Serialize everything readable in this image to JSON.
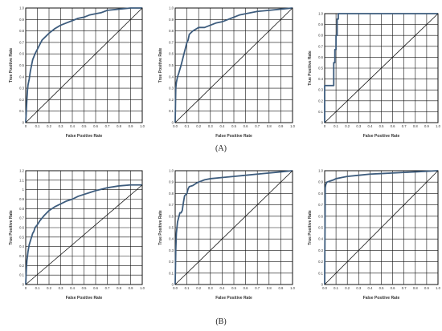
{
  "panel_labels": [
    "(A)",
    "(B)"
  ],
  "colors": {
    "curve": "#3d5c7d",
    "grid": "#111111",
    "frame": "#111111",
    "text": "#333333"
  },
  "chart_data": [
    {
      "type": "line",
      "xlabel": "False Positive Rate",
      "ylabel": "True Positive Rate",
      "xlim": [
        0,
        1
      ],
      "ylim": [
        0,
        1
      ],
      "grid": true,
      "xticks": [
        "0",
        "0.1",
        "0.2",
        "0.3",
        "0.4",
        "0.5",
        "0.6",
        "0.7",
        "0.8",
        "0.9",
        "1.0"
      ],
      "yticks": [
        "0",
        "0.1",
        "0.2",
        "0.3",
        "0.4",
        "0.5",
        "0.6",
        "0.7",
        "0.8",
        "0.9",
        "1.0"
      ],
      "series": [
        {
          "x": [
            0,
            0.005,
            0.01,
            0.015,
            0.02,
            0.03,
            0.04,
            0.05,
            0.06,
            0.08,
            0.1,
            0.12,
            0.14,
            0.16,
            0.2,
            0.25,
            0.3,
            0.35,
            0.4,
            0.45,
            0.5,
            0.55,
            0.6,
            0.65,
            0.7,
            0.8,
            0.9,
            1.0
          ],
          "y": [
            0,
            0.1,
            0.2,
            0.28,
            0.33,
            0.38,
            0.45,
            0.5,
            0.55,
            0.6,
            0.64,
            0.68,
            0.72,
            0.74,
            0.78,
            0.82,
            0.85,
            0.87,
            0.89,
            0.91,
            0.92,
            0.94,
            0.95,
            0.96,
            0.98,
            0.99,
            1.0,
            1.0
          ]
        },
        {
          "x": [
            0,
            1
          ],
          "y": [
            0,
            1
          ]
        }
      ]
    },
    {
      "type": "line",
      "xlabel": "False Positive Rate",
      "ylabel": "True Positive Rate",
      "xlim": [
        0,
        1
      ],
      "ylim": [
        0,
        1
      ],
      "grid": true,
      "xticks": [
        "0.0",
        "0.1",
        "0.2",
        "0.3",
        "0.4",
        "0.5",
        "0.6",
        "0.7",
        "0.8",
        "0.9",
        "1.0"
      ],
      "yticks": [
        "0",
        "0.1",
        "0.2",
        "0.3",
        "0.4",
        "0.5",
        "0.6",
        "0.7",
        "0.8",
        "0.9",
        "1.0"
      ],
      "series": [
        {
          "x": [
            0,
            0.005,
            0.01,
            0.02,
            0.03,
            0.05,
            0.07,
            0.08,
            0.1,
            0.11,
            0.12,
            0.15,
            0.2,
            0.25,
            0.3,
            0.35,
            0.4,
            0.45,
            0.5,
            0.55,
            0.6,
            0.7,
            0.8,
            0.9,
            1.0
          ],
          "y": [
            0,
            0.3,
            0.35,
            0.4,
            0.43,
            0.5,
            0.58,
            0.62,
            0.7,
            0.72,
            0.77,
            0.8,
            0.83,
            0.83,
            0.85,
            0.87,
            0.88,
            0.9,
            0.92,
            0.94,
            0.95,
            0.97,
            0.98,
            0.99,
            1.0
          ]
        },
        {
          "x": [
            0,
            1
          ],
          "y": [
            0,
            1
          ]
        }
      ]
    },
    {
      "type": "line",
      "xlabel": "False Positive Rate",
      "ylabel": "True Positive Rate",
      "xlim": [
        0,
        1
      ],
      "ylim": [
        0,
        1
      ],
      "grid": true,
      "xticks": [
        "0",
        "0.1",
        "0.2",
        "0.3",
        "0.4",
        "0.5",
        "0.6",
        "0.7",
        "0.8",
        "0.9",
        "1.0"
      ],
      "yticks": [
        "0",
        "0.1",
        "0.2",
        "0.3",
        "0.4",
        "0.5",
        "0.6",
        "0.7",
        "0.8",
        "0.9",
        "1.0"
      ],
      "series": [
        {
          "x": [
            0,
            0,
            0.08,
            0.08,
            0.09,
            0.09,
            0.1,
            0.1,
            0.11,
            0.11,
            0.12,
            0.12,
            1.0
          ],
          "y": [
            0,
            0.34,
            0.34,
            0.55,
            0.55,
            0.67,
            0.67,
            0.8,
            0.8,
            0.95,
            0.95,
            1.0,
            1.0
          ]
        },
        {
          "x": [
            0,
            1
          ],
          "y": [
            0,
            1
          ]
        }
      ]
    },
    {
      "type": "line",
      "xlabel": "False Positive Rate",
      "ylabel": "True Positive Rate",
      "xlim": [
        0,
        1
      ],
      "ylim": [
        0,
        1.2
      ],
      "grid": true,
      "xticks": [
        "0",
        "0.1",
        "0.2",
        "0.3",
        "0.4",
        "0.5",
        "0.6",
        "0.7",
        "0.8",
        "0.9",
        "1.0"
      ],
      "yticks": [
        "0",
        "0.1",
        "0.2",
        "0.3",
        "0.4",
        "0.5",
        "0.6",
        "0.7",
        "0.8",
        "0.9",
        "1",
        "1.1",
        "1.2"
      ],
      "series": [
        {
          "x": [
            0,
            0.005,
            0.01,
            0.02,
            0.03,
            0.04,
            0.05,
            0.06,
            0.07,
            0.08,
            0.1,
            0.12,
            0.14,
            0.16,
            0.2,
            0.25,
            0.3,
            0.35,
            0.4,
            0.45,
            0.5,
            0.55,
            0.6,
            0.7,
            0.8,
            0.9,
            1.0
          ],
          "y": [
            0,
            0.15,
            0.25,
            0.35,
            0.42,
            0.46,
            0.5,
            0.54,
            0.56,
            0.6,
            0.63,
            0.67,
            0.7,
            0.73,
            0.78,
            0.82,
            0.85,
            0.88,
            0.9,
            0.93,
            0.95,
            0.97,
            0.99,
            1.02,
            1.04,
            1.05,
            1.05
          ]
        },
        {
          "x": [
            0,
            1
          ],
          "y": [
            0,
            1.05
          ]
        }
      ]
    },
    {
      "type": "line",
      "xlabel": "False Positive Rate",
      "ylabel": "True Positive Rate",
      "xlim": [
        0,
        1
      ],
      "ylim": [
        0,
        1
      ],
      "grid": true,
      "xticks": [
        "0.0",
        "0.1",
        "0.2",
        "0.3",
        "0.4",
        "0.5",
        "0.6",
        "0.7",
        "0.8",
        "0.9",
        "1.0"
      ],
      "yticks": [
        "0",
        "0.1",
        "0.2",
        "0.3",
        "0.4",
        "0.5",
        "0.6",
        "0.7",
        "0.8",
        "0.9",
        "1.0"
      ],
      "series": [
        {
          "x": [
            0,
            0.005,
            0.01,
            0.02,
            0.04,
            0.05,
            0.06,
            0.07,
            0.08,
            0.1,
            0.11,
            0.12,
            0.15,
            0.18,
            0.2,
            0.25,
            0.3,
            0.4,
            0.5,
            0.6,
            0.7,
            0.8,
            0.9,
            1.0
          ],
          "y": [
            0,
            0.3,
            0.45,
            0.55,
            0.63,
            0.63,
            0.65,
            0.72,
            0.78,
            0.8,
            0.84,
            0.86,
            0.87,
            0.89,
            0.9,
            0.92,
            0.93,
            0.94,
            0.95,
            0.96,
            0.97,
            0.98,
            0.99,
            1.0
          ]
        },
        {
          "x": [
            0,
            1
          ],
          "y": [
            0,
            1
          ]
        }
      ]
    },
    {
      "type": "line",
      "xlabel": "False Positive Rate",
      "ylabel": "True Positive Rate",
      "xlim": [
        0,
        1
      ],
      "ylim": [
        0,
        1
      ],
      "grid": true,
      "xticks": [
        "0.0",
        "0.1",
        "0.2",
        "0.3",
        "0.4",
        "0.5",
        "0.6",
        "0.7",
        "0.8",
        "0.9",
        "1.0"
      ],
      "yticks": [
        "0",
        "0.1",
        "0.2",
        "0.3",
        "0.4",
        "0.5",
        "0.6",
        "0.7",
        "0.8",
        "0.9",
        "1.0"
      ],
      "series": [
        {
          "x": [
            0,
            0.005,
            0.01,
            0.02,
            0.05,
            0.08,
            0.1,
            0.15,
            0.2,
            0.3,
            0.4,
            0.5,
            0.6,
            0.7,
            0.8,
            0.9,
            1.0
          ],
          "y": [
            0,
            0.85,
            0.88,
            0.9,
            0.91,
            0.92,
            0.93,
            0.94,
            0.95,
            0.96,
            0.97,
            0.975,
            0.98,
            0.985,
            0.99,
            0.995,
            1.0
          ]
        },
        {
          "x": [
            0,
            1
          ],
          "y": [
            0,
            1
          ]
        }
      ]
    }
  ]
}
